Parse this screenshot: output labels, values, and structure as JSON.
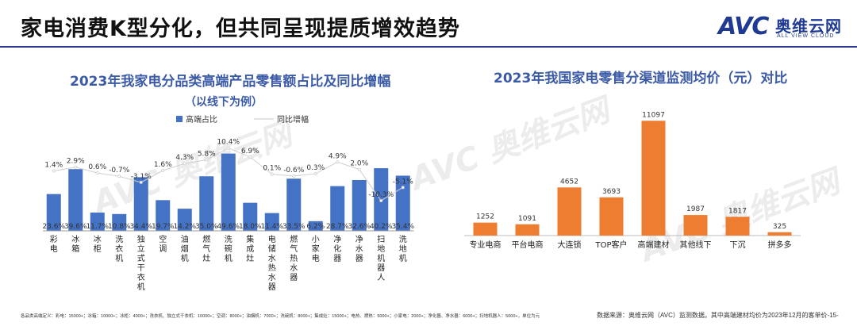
{
  "page": {
    "title": "家电消费K型分化，但共同呈现提质增效趋势"
  },
  "logo": {
    "mark": "AVC",
    "cn": "奥维云网",
    "en": "ALL VIEW CLOUD"
  },
  "watermark": {
    "text": "AVC 奥维云网"
  },
  "colors": {
    "blue": "#4472c4",
    "orange": "#ed7d31",
    "title_blue": "#3b5aa6",
    "rule": "#2b3990"
  },
  "chart_data": [
    {
      "type": "bar",
      "title": "2023年我家电分品类高端产品零售额占比及同比增幅",
      "subtitle": "（以线下为例）",
      "legend_position": "top",
      "legend": [
        "高端占比",
        "同比增幅"
      ],
      "categories": [
        [
          "彩",
          "电"
        ],
        [
          "冰",
          "箱"
        ],
        [
          "冰",
          "柜"
        ],
        [
          "洗",
          "衣",
          "机"
        ],
        [
          "独",
          "立",
          "式",
          "干",
          "衣",
          "机"
        ],
        [
          "空",
          "调"
        ],
        [
          "油",
          "烟",
          "机"
        ],
        [
          "燃",
          "气",
          "灶"
        ],
        [
          "洗",
          "碗",
          "机"
        ],
        [
          "集",
          "成",
          "灶"
        ],
        [
          "电",
          "储",
          "水",
          "热",
          "水",
          "器"
        ],
        [
          "燃",
          "气",
          "热",
          "水",
          "器"
        ],
        [
          "小",
          "家",
          "电"
        ],
        [
          "净",
          "化",
          "器"
        ],
        [
          "净",
          "水",
          "器"
        ],
        [
          "扫",
          "地",
          "机",
          "器",
          "人"
        ],
        [
          "洗",
          "地",
          "机"
        ]
      ],
      "series": [
        {
          "name": "高端占比",
          "type": "bar",
          "values": [
            23.6,
            39.6,
            11.7,
            10.8,
            34.4,
            19.7,
            14.2,
            35.0,
            49.6,
            18.0,
            11.4,
            33.5,
            6.2,
            28.7,
            32.6,
            40.2,
            35.4
          ],
          "labels": [
            "23.6%",
            "39.6%",
            "11.7%",
            "10.8%",
            "34.4%",
            "19.7%",
            "14.2%",
            "35.0%",
            "49.6%",
            "18.0%",
            "11.4%",
            "33.5%",
            "6.2%",
            "28.7%",
            "32.6%",
            "40.2%",
            "35.4%"
          ]
        },
        {
          "name": "同比增幅",
          "type": "line",
          "values": [
            1.4,
            2.9,
            0.6,
            -0.7,
            -3.1,
            1.6,
            4.3,
            5.8,
            10.4,
            6.9,
            0.1,
            -0.6,
            0.3,
            4.9,
            2.0,
            -10.3,
            -5.1
          ],
          "labels": [
            "1.4%",
            "2.9%",
            "0.6%",
            "-0.7%",
            "-3.1%",
            "1.6%",
            "4.3%",
            "5.8%",
            "10.4%",
            "6.9%",
            "0.1%",
            "-0.6%",
            "0.3%",
            "4.9%",
            "2.0%",
            "-10.3%",
            "-5.1%"
          ]
        }
      ],
      "bar_ylim": [
        0,
        55
      ],
      "line_ylim": [
        -24,
        24
      ]
    },
    {
      "type": "bar",
      "title": "2023年我国家电零售分渠道监测均价（元）对比",
      "categories": [
        "专业电商",
        "平台电商",
        "大连锁",
        "TOP客户",
        "高端建材",
        "其他线下",
        "下沉",
        "拼多多"
      ],
      "values": [
        1252,
        1091,
        4652,
        3693,
        11097,
        1987,
        1817,
        325
      ],
      "ylim": [
        0,
        11500
      ]
    }
  ],
  "footnotes": {
    "left": "各品类高端定义：彩电：15000+；冰箱：10000+；冰柜：4000+；洗衣机、独立式干衣机：10000+；空调：8000+；油烟机：7000+；洗碗机：8000+；集成灶：15000+；电热、燃热：5000+；小家电：2000+；净化器、净水器：6000+；扫地机器人：5000+，单位为元",
    "right": "数据来源：奥维云网（AVC）监测数据。其中高端建材均价为2023年12月的客单价",
    "page_number": "-15-"
  }
}
